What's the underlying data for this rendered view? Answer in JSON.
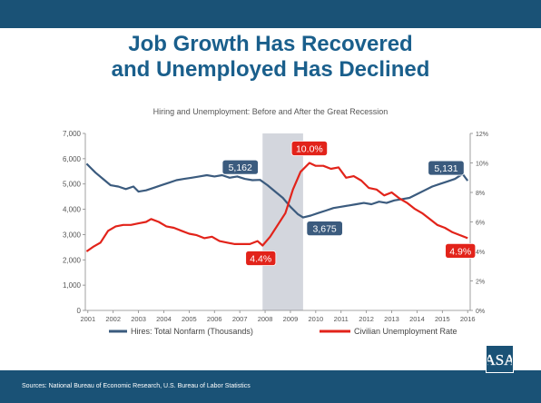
{
  "slide": {
    "title_line1": "Job Growth Has Recovered",
    "title_line2": "and Unemployed Has Declined",
    "source": "Sources: National Bureau of Economic Research, U.S. Bureau of Labor Statistics",
    "logo_text": "ASA"
  },
  "colors": {
    "bar": "#1a5276",
    "title": "#1a5f8c",
    "hires": "#3b5b7e",
    "unemployment": "#e2231a",
    "recession_band": "#d3d6dd"
  },
  "chart_data": {
    "type": "line",
    "title": "Hiring and Unemployment: Before and After the Great Recession",
    "x_ticks": [
      "2001",
      "2002",
      "2003",
      "2004",
      "2005",
      "2006",
      "2007",
      "2008",
      "2009",
      "2010",
      "2011",
      "2012",
      "2013",
      "2014",
      "2015",
      "2016"
    ],
    "xlim": [
      2000.9,
      2016.1
    ],
    "y_left": {
      "ticks": [
        "0",
        "1,000",
        "2,000",
        "3,000",
        "4,000",
        "5,000",
        "6,000",
        "7,000"
      ],
      "lim": [
        0,
        7000
      ]
    },
    "y_right": {
      "ticks": [
        "0%",
        "2%",
        "4%",
        "6%",
        "8%",
        "10%",
        "12%"
      ],
      "lim": [
        0,
        12
      ]
    },
    "recession": [
      2007.9,
      2009.5
    ],
    "grid": false,
    "legend_placement": "bottom",
    "series": [
      {
        "name": "Hires: Total Nonfarm (Thousands)",
        "axis": "left",
        "x": [
          2000.95,
          2001.1,
          2001.3,
          2001.6,
          2001.9,
          2002.2,
          2002.5,
          2002.8,
          2003.0,
          2003.3,
          2003.6,
          2003.9,
          2004.2,
          2004.5,
          2004.8,
          2005.1,
          2005.4,
          2005.7,
          2006.0,
          2006.3,
          2006.6,
          2006.9,
          2007.2,
          2007.5,
          2007.8,
          2008.1,
          2008.4,
          2008.7,
          2009.0,
          2009.3,
          2009.5,
          2009.8,
          2010.1,
          2010.4,
          2010.7,
          2011.0,
          2011.3,
          2011.6,
          2011.9,
          2012.2,
          2012.5,
          2012.8,
          2013.1,
          2013.4,
          2013.7,
          2014.0,
          2014.3,
          2014.6,
          2014.9,
          2015.2,
          2015.5,
          2015.8,
          2016.0
        ],
        "values": [
          5800,
          5650,
          5450,
          5200,
          4950,
          4900,
          4800,
          4900,
          4700,
          4750,
          4850,
          4950,
          5050,
          5150,
          5200,
          5250,
          5300,
          5350,
          5300,
          5350,
          5250,
          5300,
          5200,
          5150,
          5162,
          4950,
          4700,
          4450,
          4100,
          3800,
          3675,
          3750,
          3850,
          3950,
          4050,
          4100,
          4150,
          4200,
          4250,
          4200,
          4300,
          4250,
          4350,
          4400,
          4450,
          4600,
          4750,
          4900,
          5000,
          5100,
          5200,
          5400,
          5131
        ]
      },
      {
        "name": "Civilian Unemployment Rate",
        "axis": "right",
        "x": [
          2000.95,
          2001.2,
          2001.5,
          2001.8,
          2002.1,
          2002.4,
          2002.7,
          2003.0,
          2003.3,
          2003.5,
          2003.8,
          2004.1,
          2004.4,
          2004.7,
          2005.0,
          2005.3,
          2005.6,
          2005.9,
          2006.2,
          2006.5,
          2006.8,
          2007.1,
          2007.4,
          2007.7,
          2007.9,
          2008.2,
          2008.5,
          2008.8,
          2009.1,
          2009.4,
          2009.75,
          2010.0,
          2010.3,
          2010.6,
          2010.9,
          2011.2,
          2011.5,
          2011.8,
          2012.1,
          2012.4,
          2012.7,
          2013.0,
          2013.3,
          2013.6,
          2013.9,
          2014.2,
          2014.5,
          2014.8,
          2015.1,
          2015.4,
          2015.7,
          2016.0
        ],
        "values": [
          4.0,
          4.3,
          4.6,
          5.4,
          5.7,
          5.8,
          5.8,
          5.9,
          6.0,
          6.2,
          6.0,
          5.7,
          5.6,
          5.4,
          5.2,
          5.1,
          4.9,
          5.0,
          4.7,
          4.6,
          4.5,
          4.5,
          4.5,
          4.7,
          4.4,
          5.0,
          5.8,
          6.6,
          8.2,
          9.4,
          10.0,
          9.8,
          9.8,
          9.6,
          9.7,
          9.0,
          9.1,
          8.8,
          8.3,
          8.2,
          7.8,
          8.0,
          7.6,
          7.3,
          6.9,
          6.6,
          6.2,
          5.8,
          5.6,
          5.3,
          5.1,
          4.9
        ]
      }
    ],
    "annotations": [
      {
        "text": "5,162",
        "x": 2007.8,
        "y": 5162,
        "axis": "left",
        "color": "#3b5b7e"
      },
      {
        "text": "3,675",
        "x": 2009.5,
        "y": 3675,
        "axis": "left",
        "color": "#3b5b7e"
      },
      {
        "text": "5,131",
        "x": 2016.0,
        "y": 5131,
        "axis": "left",
        "color": "#3b5b7e"
      },
      {
        "text": "10.0%",
        "x": 2009.75,
        "y": 10.0,
        "axis": "right",
        "color": "#e2231a"
      },
      {
        "text": "4.4%",
        "x": 2007.9,
        "y": 4.4,
        "axis": "right",
        "color": "#e2231a"
      },
      {
        "text": "4.9%",
        "x": 2016.0,
        "y": 4.9,
        "axis": "right",
        "color": "#e2231a"
      }
    ]
  }
}
